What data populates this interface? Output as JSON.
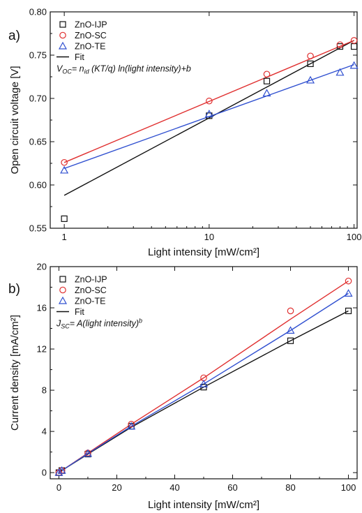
{
  "colors": {
    "ZnO-IJP": "#111111",
    "ZnO-SC": "#e03030",
    "ZnO-TE": "#3050d0",
    "Fit": "#111111"
  },
  "chart_data": [
    {
      "panel_label": "a)",
      "type": "scatter",
      "xscale": "log",
      "xlabel": "Light intensity [mW/cm²]",
      "ylabel": "Open circuit voltage [V]",
      "xlim": [
        0.8,
        105
      ],
      "ylim": [
        0.55,
        0.8
      ],
      "x_ticks": [
        1,
        10,
        100
      ],
      "x_tick_labels": [
        "1",
        "10",
        "100"
      ],
      "y_ticks": [
        0.55,
        0.6,
        0.65,
        0.7,
        0.75,
        0.8
      ],
      "y_tick_labels": [
        "0.55",
        "0.60",
        "0.65",
        "0.70",
        "0.75",
        "0.80"
      ],
      "legend_position": "top-left",
      "equation": {
        "main": "V",
        "sub": "OC",
        "rest": "= n",
        "sub2": "id",
        "tail": " (KT/q) ln(light intensity)+b"
      },
      "series": [
        {
          "name": "ZnO-IJP",
          "marker": "square",
          "x": [
            1,
            10,
            25,
            50,
            80,
            100
          ],
          "y": [
            0.561,
            0.68,
            0.72,
            0.74,
            0.76,
            0.76
          ]
        },
        {
          "name": "ZnO-SC",
          "marker": "circle",
          "x": [
            1,
            10,
            25,
            50,
            80,
            100
          ],
          "y": [
            0.626,
            0.697,
            0.728,
            0.749,
            0.762,
            0.767
          ]
        },
        {
          "name": "ZnO-TE",
          "marker": "triangle",
          "x": [
            1,
            10,
            25,
            50,
            80,
            100
          ],
          "y": [
            0.617,
            0.682,
            0.706,
            0.721,
            0.73,
            0.738
          ]
        }
      ],
      "fits": [
        {
          "series": "ZnO-IJP",
          "x": [
            1,
            100
          ],
          "y": [
            0.588,
            0.767
          ]
        },
        {
          "series": "ZnO-SC",
          "x": [
            1,
            100
          ],
          "y": [
            0.626,
            0.767
          ]
        },
        {
          "series": "ZnO-TE",
          "x": [
            1,
            100
          ],
          "y": [
            0.619,
            0.739
          ]
        }
      ],
      "legend_fit_label": "Fit"
    },
    {
      "panel_label": "b)",
      "type": "scatter",
      "xscale": "linear",
      "xlabel": "Light intensity [mW/cm²]",
      "ylabel": "Current density [mA/cm²]",
      "xlim": [
        -3,
        103
      ],
      "ylim": [
        -0.6,
        20
      ],
      "x_ticks": [
        0,
        20,
        40,
        60,
        80,
        100
      ],
      "x_tick_labels": [
        "0",
        "20",
        "40",
        "60",
        "80",
        "100"
      ],
      "y_ticks": [
        0,
        4,
        8,
        12,
        16,
        20
      ],
      "y_tick_labels": [
        "0",
        "4",
        "8",
        "12",
        "16",
        "20"
      ],
      "legend_position": "top-left",
      "equation": {
        "main": "J",
        "sub": "SC",
        "rest": "= A(light intensity)",
        "sup": "b"
      },
      "series": [
        {
          "name": "ZnO-IJP",
          "marker": "square",
          "x": [
            0,
            1,
            10,
            25,
            50,
            80,
            100
          ],
          "y": [
            0.0,
            0.2,
            1.8,
            4.5,
            8.3,
            12.8,
            15.7
          ]
        },
        {
          "name": "ZnO-SC",
          "marker": "circle",
          "x": [
            0,
            1,
            10,
            25,
            50,
            80,
            100
          ],
          "y": [
            0.0,
            0.2,
            1.9,
            4.7,
            9.2,
            15.7,
            18.6
          ]
        },
        {
          "name": "ZnO-TE",
          "marker": "triangle",
          "x": [
            0,
            1,
            10,
            25,
            50,
            80,
            100
          ],
          "y": [
            0.0,
            0.2,
            1.85,
            4.5,
            8.6,
            13.8,
            17.4
          ]
        }
      ],
      "fits": [
        {
          "series": "ZnO-IJP",
          "x": [
            0,
            1,
            10,
            25,
            50,
            80,
            100
          ],
          "y": [
            0,
            0.2,
            1.8,
            4.4,
            8.3,
            12.8,
            15.7
          ]
        },
        {
          "series": "ZnO-SC",
          "x": [
            0,
            1,
            10,
            25,
            50,
            80,
            100
          ],
          "y": [
            0,
            0.2,
            1.9,
            4.7,
            9.2,
            14.9,
            18.6
          ]
        },
        {
          "series": "ZnO-TE",
          "x": [
            0,
            1,
            10,
            25,
            50,
            80,
            100
          ],
          "y": [
            0,
            0.2,
            1.85,
            4.5,
            8.6,
            13.8,
            17.4
          ]
        }
      ],
      "legend_fit_label": "Fit"
    }
  ]
}
